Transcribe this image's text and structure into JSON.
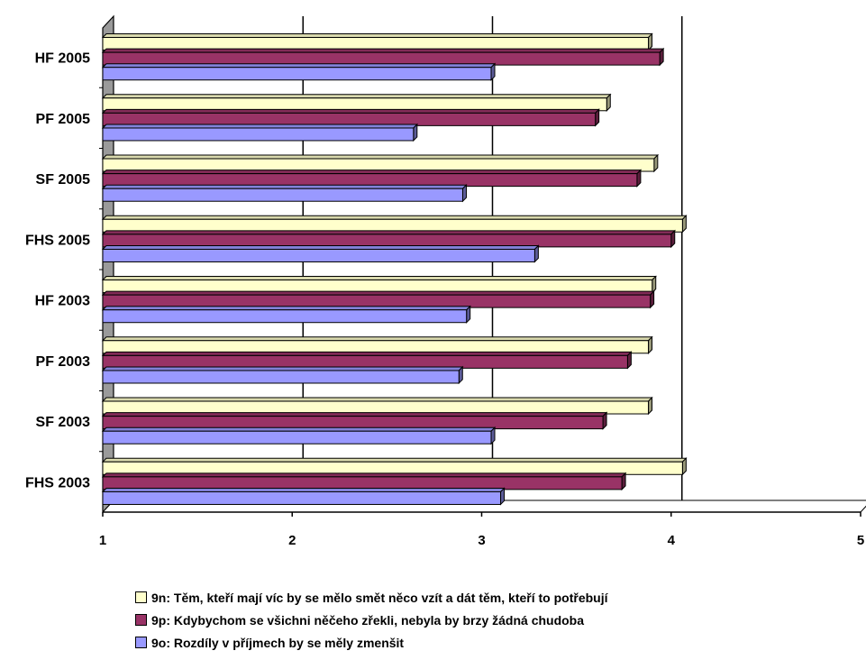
{
  "chart_data": {
    "type": "bar",
    "orientation": "horizontal",
    "categories": [
      "HF 2005",
      "PF 2005",
      "SF 2005",
      "FHS 2005",
      "HF 2003",
      "PF 2003",
      "SF 2003",
      "FHS 2003"
    ],
    "series": [
      {
        "name": "9n: Těm, kteří mají víc by se mělo smět něco vzít a dát těm, kteří to potřebují",
        "color": "#FFFFCC",
        "values": [
          3.88,
          3.66,
          3.91,
          4.06,
          3.9,
          3.88,
          3.88,
          4.06
        ]
      },
      {
        "name": "9p: Kdybychom se všichni něčeho zřekli, nebyla by brzy žádná chudoba",
        "color": "#993366",
        "values": [
          3.94,
          3.6,
          3.82,
          4.0,
          3.89,
          3.77,
          3.64,
          3.74
        ]
      },
      {
        "name": "9o: Rozdíly v příjmech by se měly zmenšit",
        "color": "#9999FF",
        "values": [
          3.05,
          2.64,
          2.9,
          3.28,
          2.92,
          2.88,
          3.05,
          3.1
        ]
      }
    ],
    "xlim": [
      1,
      5
    ],
    "x_ticks": [
      "1",
      "2",
      "3",
      "4",
      "5"
    ],
    "grid": true,
    "legend_position": "bottom",
    "style": "3d"
  }
}
